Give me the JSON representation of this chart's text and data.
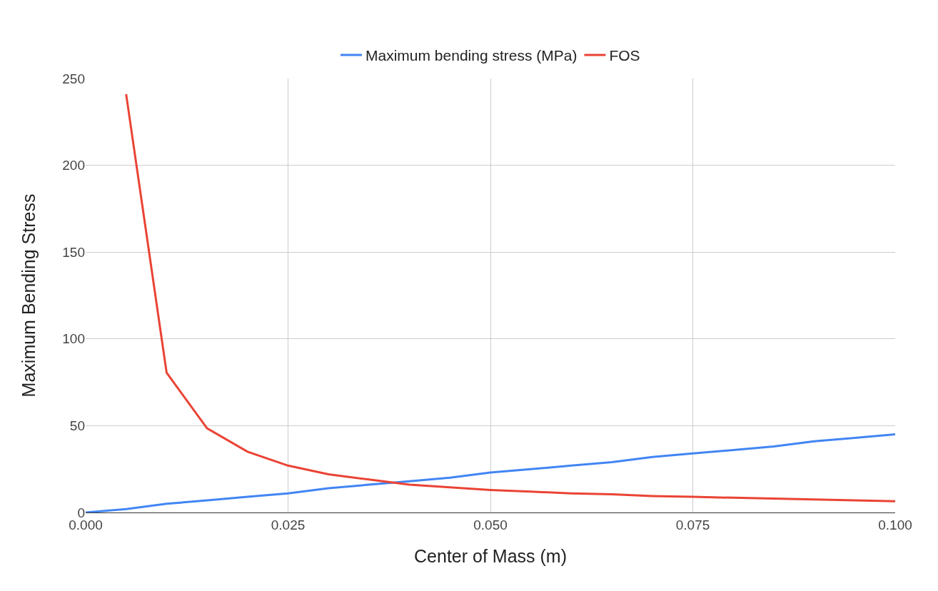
{
  "chart_data": {
    "type": "line",
    "xlabel": "Center of Mass (m)",
    "ylabel": "Maximum Bending Stress",
    "series": [
      {
        "name": "Maximum bending stress (MPa)",
        "color": "#4285f4",
        "x": [
          0.0,
          0.005,
          0.01,
          0.015,
          0.02,
          0.025,
          0.03,
          0.035,
          0.04,
          0.045,
          0.05,
          0.055,
          0.06,
          0.065,
          0.07,
          0.075,
          0.08,
          0.085,
          0.09,
          0.095,
          0.1
        ],
        "values": [
          0,
          2,
          5,
          7,
          9,
          11,
          14,
          16,
          18,
          20,
          23,
          25,
          27,
          29,
          32,
          34,
          36,
          38,
          41,
          43,
          45
        ]
      },
      {
        "name": "FOS",
        "color": "#ea4335",
        "x": [
          0.005,
          0.01,
          0.015,
          0.02,
          0.025,
          0.03,
          0.035,
          0.04,
          0.045,
          0.05,
          0.055,
          0.06,
          0.065,
          0.07,
          0.075,
          0.08,
          0.085,
          0.09,
          0.095,
          0.1
        ],
        "values": [
          241,
          80.5,
          48.5,
          35,
          27,
          22,
          19,
          16,
          14.5,
          13,
          12,
          11,
          10.5,
          9.5,
          9,
          8.5,
          8,
          7.5,
          7,
          6.5
        ]
      }
    ],
    "xlim": [
      0,
      0.1
    ],
    "xticks": [
      {
        "value": 0,
        "label": "0.000"
      },
      {
        "value": 0.025,
        "label": "0.025"
      },
      {
        "value": 0.05,
        "label": "0.050"
      },
      {
        "value": 0.075,
        "label": "0.075"
      },
      {
        "value": 0.1,
        "label": "0.100"
      }
    ],
    "ylim": [
      0,
      250
    ],
    "yticks": [
      0,
      50,
      100,
      150,
      200,
      250
    ],
    "grid": true,
    "legend": "top",
    "marker": "none",
    "line_style": "solid"
  }
}
